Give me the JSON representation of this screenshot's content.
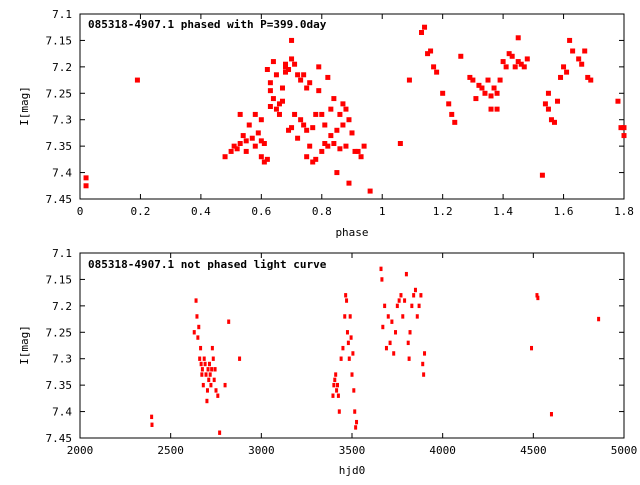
{
  "colors": {
    "points": "#ff0000",
    "axis": "#000000",
    "background": "#ffffff"
  },
  "chart_data": [
    {
      "type": "scatter",
      "title": "085318-4907.1 phased with P=399.0day",
      "xlabel": "phase",
      "ylabel": "I[mag]",
      "xlim": [
        0,
        1.8
      ],
      "ylim": [
        7.45,
        7.1
      ],
      "y_inverted": true,
      "grid": false,
      "xticks": [
        "0",
        "0.2",
        "0.4",
        "0.6",
        "0.8",
        "1",
        "1.2",
        "1.4",
        "1.6",
        "1.8"
      ],
      "yticks": [
        "7.1",
        "7.15",
        "7.2",
        "7.25",
        "7.3",
        "7.35",
        "7.4",
        "7.45"
      ],
      "series": [
        {
          "points": [
            [
              0.02,
              7.41
            ],
            [
              0.02,
              7.425
            ],
            [
              0.19,
              7.225
            ],
            [
              0.48,
              7.37
            ],
            [
              0.5,
              7.36
            ],
            [
              0.51,
              7.35
            ],
            [
              0.52,
              7.355
            ],
            [
              0.53,
              7.345
            ],
            [
              0.53,
              7.29
            ],
            [
              0.54,
              7.33
            ],
            [
              0.55,
              7.34
            ],
            [
              0.55,
              7.36
            ],
            [
              0.56,
              7.31
            ],
            [
              0.57,
              7.335
            ],
            [
              0.58,
              7.35
            ],
            [
              0.58,
              7.29
            ],
            [
              0.59,
              7.325
            ],
            [
              0.6,
              7.34
            ],
            [
              0.6,
              7.37
            ],
            [
              0.6,
              7.3
            ],
            [
              0.61,
              7.38
            ],
            [
              0.61,
              7.345
            ],
            [
              0.62,
              7.375
            ],
            [
              0.62,
              7.205
            ],
            [
              0.63,
              7.23
            ],
            [
              0.63,
              7.275
            ],
            [
              0.63,
              7.245
            ],
            [
              0.64,
              7.26
            ],
            [
              0.64,
              7.19
            ],
            [
              0.65,
              7.28
            ],
            [
              0.65,
              7.215
            ],
            [
              0.66,
              7.27
            ],
            [
              0.66,
              7.29
            ],
            [
              0.67,
              7.24
            ],
            [
              0.67,
              7.265
            ],
            [
              0.68,
              7.21
            ],
            [
              0.68,
              7.2
            ],
            [
              0.68,
              7.195
            ],
            [
              0.69,
              7.32
            ],
            [
              0.69,
              7.205
            ],
            [
              0.7,
              7.185
            ],
            [
              0.7,
              7.315
            ],
            [
              0.7,
              7.15
            ],
            [
              0.71,
              7.195
            ],
            [
              0.71,
              7.29
            ],
            [
              0.72,
              7.215
            ],
            [
              0.72,
              7.335
            ],
            [
              0.73,
              7.3
            ],
            [
              0.73,
              7.225
            ],
            [
              0.74,
              7.31
            ],
            [
              0.74,
              7.215
            ],
            [
              0.75,
              7.24
            ],
            [
              0.75,
              7.32
            ],
            [
              0.75,
              7.37
            ],
            [
              0.76,
              7.35
            ],
            [
              0.76,
              7.23
            ],
            [
              0.77,
              7.38
            ],
            [
              0.77,
              7.315
            ],
            [
              0.78,
              7.29
            ],
            [
              0.78,
              7.375
            ],
            [
              0.79,
              7.2
            ],
            [
              0.79,
              7.245
            ],
            [
              0.8,
              7.36
            ],
            [
              0.8,
              7.29
            ],
            [
              0.81,
              7.345
            ],
            [
              0.81,
              7.31
            ],
            [
              0.82,
              7.22
            ],
            [
              0.82,
              7.35
            ],
            [
              0.83,
              7.33
            ],
            [
              0.83,
              7.28
            ],
            [
              0.84,
              7.345
            ],
            [
              0.84,
              7.26
            ],
            [
              0.85,
              7.32
            ],
            [
              0.85,
              7.4
            ],
            [
              0.86,
              7.29
            ],
            [
              0.86,
              7.355
            ],
            [
              0.87,
              7.27
            ],
            [
              0.87,
              7.31
            ],
            [
              0.88,
              7.28
            ],
            [
              0.88,
              7.35
            ],
            [
              0.89,
              7.3
            ],
            [
              0.89,
              7.42
            ],
            [
              0.9,
              7.325
            ],
            [
              0.91,
              7.36
            ],
            [
              0.92,
              7.36
            ],
            [
              0.93,
              7.37
            ],
            [
              0.94,
              7.35
            ],
            [
              0.96,
              7.435
            ],
            [
              1.06,
              7.345
            ],
            [
              1.09,
              7.225
            ],
            [
              1.13,
              7.135
            ],
            [
              1.14,
              7.125
            ],
            [
              1.15,
              7.175
            ],
            [
              1.16,
              7.17
            ],
            [
              1.17,
              7.2
            ],
            [
              1.18,
              7.21
            ],
            [
              1.2,
              7.25
            ],
            [
              1.22,
              7.27
            ],
            [
              1.23,
              7.29
            ],
            [
              1.24,
              7.305
            ],
            [
              1.26,
              7.18
            ],
            [
              1.29,
              7.22
            ],
            [
              1.3,
              7.225
            ],
            [
              1.31,
              7.26
            ],
            [
              1.32,
              7.235
            ],
            [
              1.33,
              7.24
            ],
            [
              1.34,
              7.25
            ],
            [
              1.35,
              7.225
            ],
            [
              1.36,
              7.255
            ],
            [
              1.36,
              7.28
            ],
            [
              1.37,
              7.24
            ],
            [
              1.38,
              7.25
            ],
            [
              1.38,
              7.28
            ],
            [
              1.39,
              7.225
            ],
            [
              1.4,
              7.19
            ],
            [
              1.41,
              7.2
            ],
            [
              1.42,
              7.175
            ],
            [
              1.43,
              7.18
            ],
            [
              1.44,
              7.2
            ],
            [
              1.45,
              7.145
            ],
            [
              1.45,
              7.19
            ],
            [
              1.46,
              7.195
            ],
            [
              1.47,
              7.2
            ],
            [
              1.48,
              7.185
            ],
            [
              1.53,
              7.405
            ],
            [
              1.54,
              7.27
            ],
            [
              1.55,
              7.28
            ],
            [
              1.55,
              7.25
            ],
            [
              1.56,
              7.3
            ],
            [
              1.57,
              7.305
            ],
            [
              1.58,
              7.265
            ],
            [
              1.59,
              7.22
            ],
            [
              1.6,
              7.2
            ],
            [
              1.61,
              7.21
            ],
            [
              1.62,
              7.15
            ],
            [
              1.63,
              7.17
            ],
            [
              1.65,
              7.185
            ],
            [
              1.66,
              7.195
            ],
            [
              1.67,
              7.17
            ],
            [
              1.68,
              7.22
            ],
            [
              1.69,
              7.225
            ],
            [
              1.78,
              7.265
            ],
            [
              1.79,
              7.315
            ],
            [
              1.8,
              7.33
            ],
            [
              1.8,
              7.315
            ]
          ]
        }
      ]
    },
    {
      "type": "scatter",
      "title": "085318-4907.1 not phased light curve",
      "xlabel": "hjd0",
      "ylabel": "I[mag]",
      "xlim": [
        2000,
        5000
      ],
      "ylim": [
        7.45,
        7.1
      ],
      "y_inverted": true,
      "grid": false,
      "xticks": [
        "2000",
        "2500",
        "3000",
        "3500",
        "4000",
        "4500",
        "5000"
      ],
      "yticks": [
        "7.1",
        "7.15",
        "7.2",
        "7.25",
        "7.3",
        "7.35",
        "7.4",
        "7.45"
      ],
      "series": [
        {
          "points": [
            [
              2395,
              7.41
            ],
            [
              2397,
              7.425
            ],
            [
              2630,
              7.25
            ],
            [
              2640,
              7.19
            ],
            [
              2645,
              7.22
            ],
            [
              2650,
              7.26
            ],
            [
              2655,
              7.24
            ],
            [
              2660,
              7.3
            ],
            [
              2665,
              7.28
            ],
            [
              2668,
              7.31
            ],
            [
              2672,
              7.33
            ],
            [
              2675,
              7.32
            ],
            [
              2680,
              7.35
            ],
            [
              2685,
              7.3
            ],
            [
              2690,
              7.31
            ],
            [
              2695,
              7.33
            ],
            [
              2700,
              7.38
            ],
            [
              2703,
              7.36
            ],
            [
              2706,
              7.32
            ],
            [
              2710,
              7.34
            ],
            [
              2714,
              7.31
            ],
            [
              2718,
              7.33
            ],
            [
              2722,
              7.35
            ],
            [
              2726,
              7.32
            ],
            [
              2730,
              7.28
            ],
            [
              2735,
              7.3
            ],
            [
              2740,
              7.34
            ],
            [
              2745,
              7.32
            ],
            [
              2750,
              7.36
            ],
            [
              2760,
              7.37
            ],
            [
              2770,
              7.44
            ],
            [
              2800,
              7.35
            ],
            [
              2820,
              7.23
            ],
            [
              2880,
              7.3
            ],
            [
              3395,
              7.37
            ],
            [
              3400,
              7.35
            ],
            [
              3405,
              7.34
            ],
            [
              3410,
              7.33
            ],
            [
              3415,
              7.36
            ],
            [
              3420,
              7.35
            ],
            [
              3425,
              7.37
            ],
            [
              3430,
              7.4
            ],
            [
              3440,
              7.3
            ],
            [
              3450,
              7.28
            ],
            [
              3460,
              7.22
            ],
            [
              3465,
              7.18
            ],
            [
              3470,
              7.19
            ],
            [
              3475,
              7.25
            ],
            [
              3480,
              7.27
            ],
            [
              3485,
              7.3
            ],
            [
              3490,
              7.22
            ],
            [
              3495,
              7.26
            ],
            [
              3500,
              7.33
            ],
            [
              3505,
              7.29
            ],
            [
              3510,
              7.36
            ],
            [
              3515,
              7.4
            ],
            [
              3520,
              7.43
            ],
            [
              3525,
              7.42
            ],
            [
              3660,
              7.13
            ],
            [
              3665,
              7.15
            ],
            [
              3670,
              7.24
            ],
            [
              3680,
              7.2
            ],
            [
              3690,
              7.28
            ],
            [
              3700,
              7.22
            ],
            [
              3710,
              7.27
            ],
            [
              3720,
              7.23
            ],
            [
              3730,
              7.29
            ],
            [
              3740,
              7.25
            ],
            [
              3750,
              7.2
            ],
            [
              3760,
              7.19
            ],
            [
              3770,
              7.18
            ],
            [
              3780,
              7.22
            ],
            [
              3790,
              7.19
            ],
            [
              3800,
              7.14
            ],
            [
              3810,
              7.27
            ],
            [
              3815,
              7.3
            ],
            [
              3820,
              7.25
            ],
            [
              3830,
              7.2
            ],
            [
              3840,
              7.18
            ],
            [
              3850,
              7.17
            ],
            [
              3860,
              7.22
            ],
            [
              3870,
              7.2
            ],
            [
              3880,
              7.18
            ],
            [
              3890,
              7.31
            ],
            [
              3895,
              7.33
            ],
            [
              3900,
              7.29
            ],
            [
              4490,
              7.28
            ],
            [
              4520,
              7.18
            ],
            [
              4525,
              7.185
            ],
            [
              4600,
              7.405
            ],
            [
              4860,
              7.225
            ]
          ]
        }
      ]
    }
  ]
}
